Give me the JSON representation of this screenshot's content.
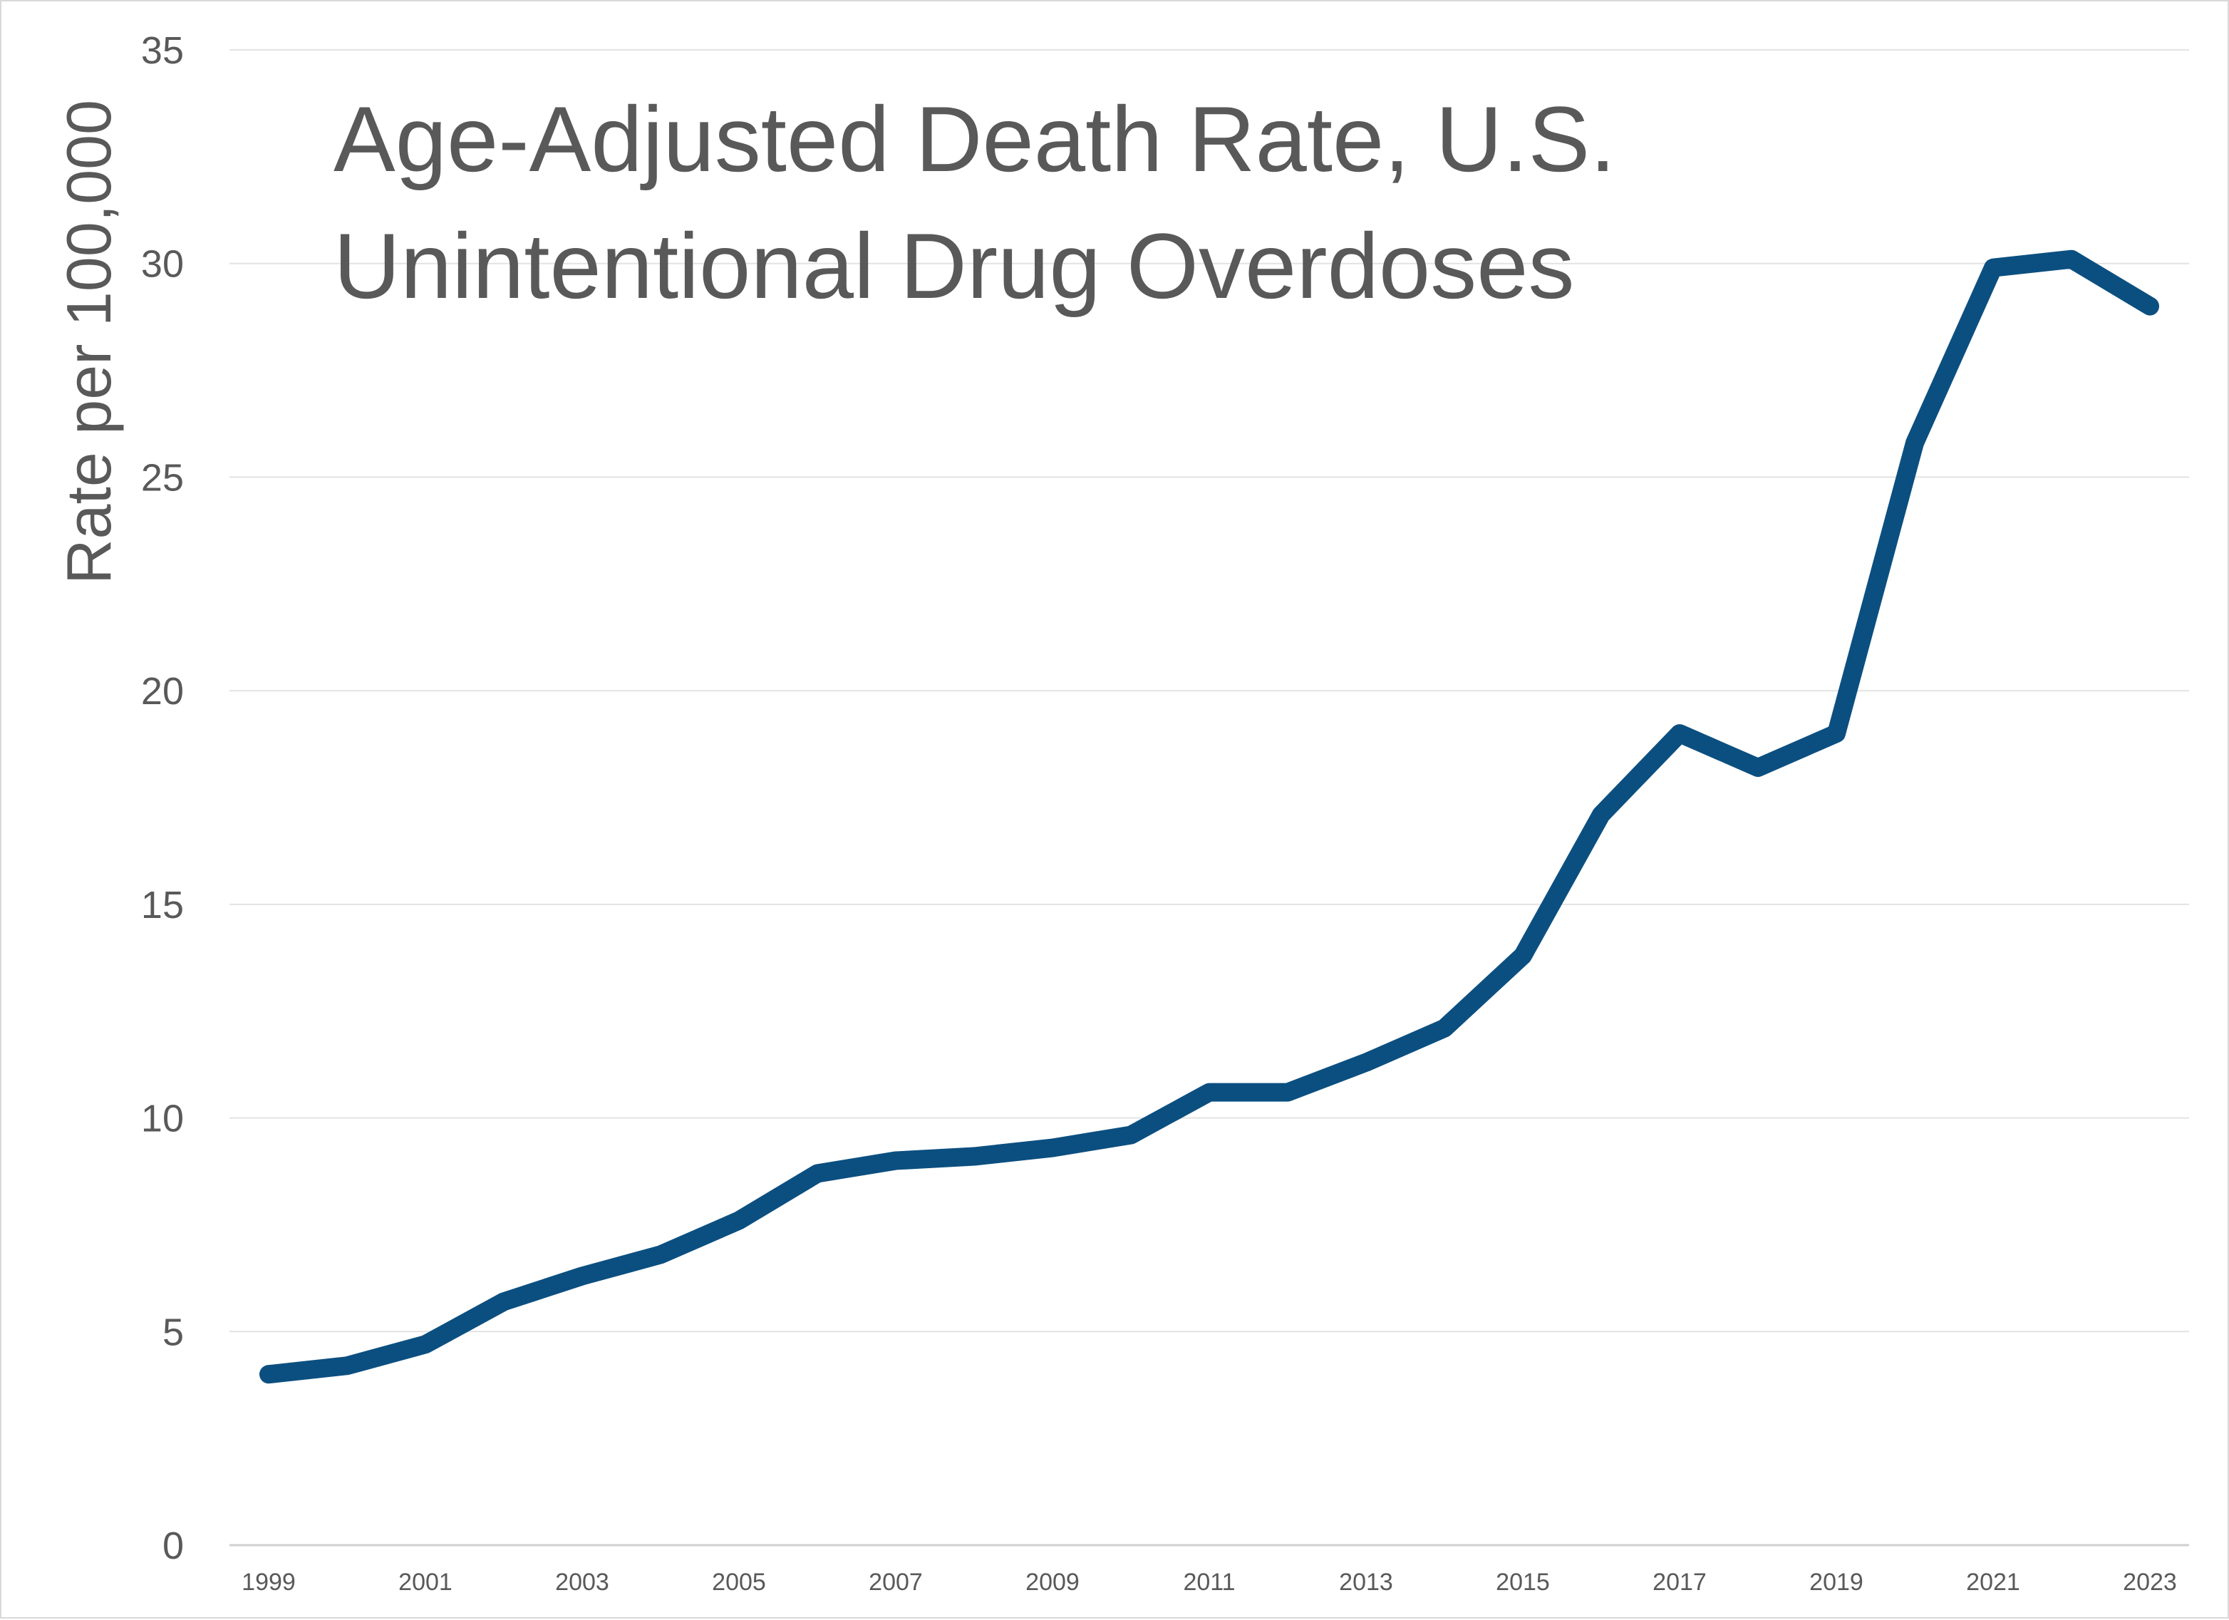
{
  "chart_data": {
    "type": "line",
    "title_lines": [
      "Age-Adjusted Death Rate, U.S.",
      "Unintentional Drug Overdoses"
    ],
    "xlabel": "",
    "ylabel": "Rate per 100,000",
    "ylim": [
      0,
      35
    ],
    "y_ticks": [
      "0",
      "5",
      "10",
      "15",
      "20",
      "25",
      "30",
      "35"
    ],
    "x_tick_labels": [
      "1999",
      "2001",
      "2003",
      "2005",
      "2007",
      "2009",
      "2011",
      "2013",
      "2015",
      "2017",
      "2019",
      "2021",
      "2023"
    ],
    "grid": true,
    "legend": "none",
    "line_color": "#0b4f80",
    "gridline_color": "#e3e3e3",
    "text_color": "#595959",
    "series": [
      {
        "x": [
          1999,
          2000,
          2001,
          2002,
          2003,
          2004,
          2005,
          2006,
          2007,
          2008,
          2009,
          2010,
          2011,
          2012,
          2013,
          2014,
          2015,
          2016,
          2017,
          2018,
          2019,
          2020,
          2021,
          2022,
          2023
        ],
        "values": [
          4.0,
          4.2,
          4.7,
          5.7,
          6.3,
          6.8,
          7.6,
          8.7,
          9.0,
          9.1,
          9.3,
          9.6,
          10.6,
          10.6,
          11.3,
          12.1,
          13.8,
          17.1,
          19.0,
          18.2,
          19.0,
          25.8,
          29.9,
          30.1,
          29.0
        ]
      }
    ]
  }
}
